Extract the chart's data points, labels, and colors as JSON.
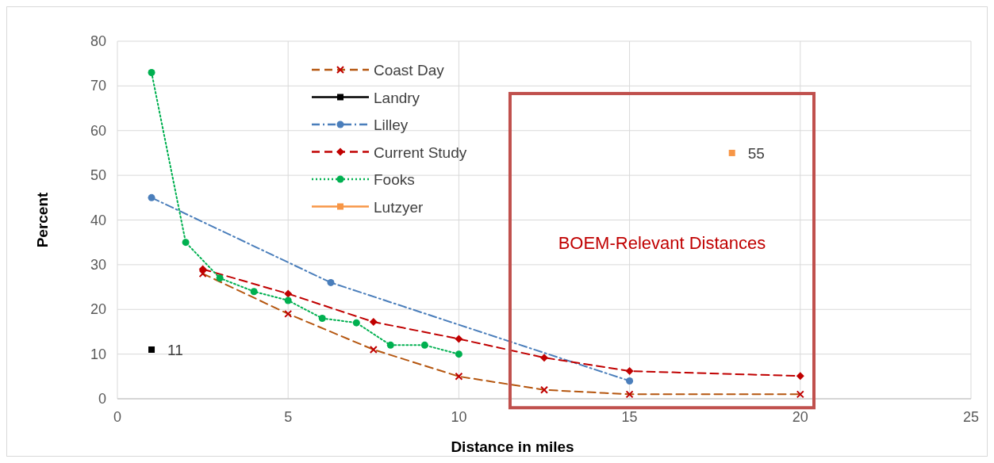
{
  "chart_data": {
    "type": "line",
    "xlabel": "Distance in miles",
    "ylabel": "Percent",
    "xlim": [
      0,
      25
    ],
    "xticks": [
      0,
      5,
      10,
      15,
      20,
      25
    ],
    "ylim": [
      0,
      80
    ],
    "yticks": [
      0,
      10,
      20,
      30,
      40,
      50,
      60,
      70,
      80
    ],
    "grid": true,
    "legend": "top left",
    "annotations": [
      "BOEM-Relevant Distances"
    ],
    "series": [
      {
        "name": "Coast Day",
        "color": "#b5560f",
        "line_style": "dashed",
        "marker": "cross",
        "x": [
          2.5,
          5,
          7.5,
          10,
          12.5,
          15,
          20
        ],
        "values": [
          28,
          19,
          11,
          5,
          2,
          1,
          1
        ]
      },
      {
        "name": "Landry",
        "color": "#000000",
        "line_style": "solid",
        "marker": "square",
        "x": [
          1
        ],
        "values": [
          11
        ],
        "value_labels": [
          "11"
        ]
      },
      {
        "name": "Lilley",
        "color": "#4a7ebb",
        "line_style": "dashdot",
        "marker": "circle",
        "x": [
          1,
          6.25,
          15
        ],
        "values": [
          45,
          26,
          4
        ]
      },
      {
        "name": "Current Study",
        "color": "#c00000",
        "line_style": "dashed",
        "marker": "diamond",
        "x": [
          2.5,
          5,
          7.5,
          10,
          12.5,
          15,
          20
        ],
        "values": [
          29,
          23.5,
          17.2,
          13.4,
          9.2,
          6.2,
          5.1
        ]
      },
      {
        "name": "Fooks",
        "color": "#00b050",
        "line_style": "dotted",
        "marker": "circle",
        "x": [
          1,
          2,
          3,
          4,
          5,
          6,
          7,
          8,
          9,
          10
        ],
        "values": [
          73,
          35,
          27,
          24,
          22,
          18,
          17,
          12,
          12,
          10
        ]
      },
      {
        "name": "Lutzyer",
        "color": "#f79646",
        "line_style": "solid",
        "marker": "square",
        "x": [
          18
        ],
        "values": [
          55
        ],
        "value_labels": [
          "55"
        ]
      }
    ]
  }
}
